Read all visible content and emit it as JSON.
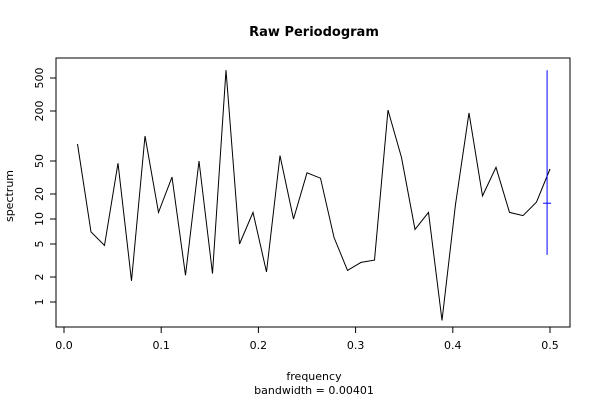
{
  "chart_data": {
    "type": "line",
    "title": "Raw Periodogram",
    "xlabel": "frequency",
    "subxlabel": "bandwidth = 0.00401",
    "ylabel": "spectrum",
    "yscale": "log",
    "xlim": [
      0,
      0.5
    ],
    "ylim": [
      0.5,
      700
    ],
    "x_ticks": [
      0.0,
      0.1,
      0.2,
      0.3,
      0.4,
      0.5
    ],
    "x_tick_labels": [
      "0.0",
      "0.1",
      "0.2",
      "0.3",
      "0.4",
      "0.5"
    ],
    "y_ticks": [
      1,
      2,
      5,
      10,
      20,
      50,
      200,
      500
    ],
    "y_tick_labels": [
      "1",
      "2",
      "5",
      "10",
      "20",
      "50",
      "200",
      "500"
    ],
    "series": [
      {
        "color": "#000000",
        "x": [
          0.0139,
          0.0278,
          0.0417,
          0.0556,
          0.0694,
          0.0833,
          0.0972,
          0.1111,
          0.125,
          0.1389,
          0.1528,
          0.1667,
          0.1806,
          0.1944,
          0.2083,
          0.2222,
          0.2361,
          0.25,
          0.2639,
          0.2778,
          0.2917,
          0.3056,
          0.3194,
          0.3333,
          0.3472,
          0.3611,
          0.375,
          0.3889,
          0.4028,
          0.4167,
          0.4306,
          0.4444,
          0.4583,
          0.4722,
          0.4861,
          0.5
        ],
        "values": [
          80,
          7.0,
          4.8,
          47,
          1.8,
          100,
          12,
          32,
          2.1,
          50,
          2.2,
          620,
          5.0,
          12,
          2.3,
          58,
          10,
          36,
          31,
          6.0,
          2.4,
          3.0,
          3.2,
          205,
          55,
          7.5,
          12,
          0.6,
          15,
          190,
          19,
          42,
          12,
          11,
          16,
          40
        ]
      }
    ],
    "ci_marker": {
      "color": "#0000ff",
      "x": 0.497,
      "center": 15.5,
      "lower": 3.7,
      "upper": 620
    }
  }
}
